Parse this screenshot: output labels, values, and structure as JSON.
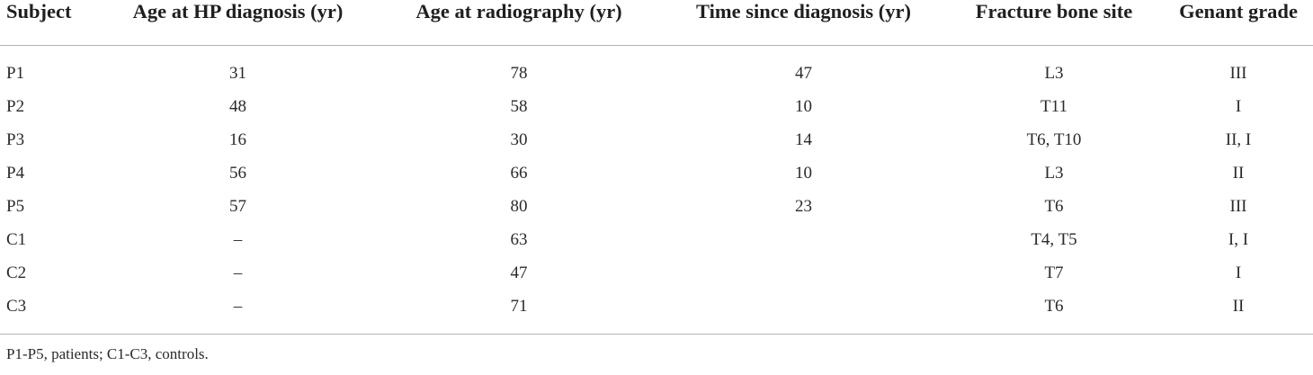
{
  "table": {
    "columns": [
      "Subject",
      "Age at HP diagnosis (yr)",
      "Age at radiography (yr)",
      "Time since diagnosis (yr)",
      "Fracture bone site",
      "Genant grade"
    ],
    "rows": [
      [
        "P1",
        "31",
        "78",
        "47",
        "L3",
        "III"
      ],
      [
        "P2",
        "48",
        "58",
        "10",
        "T11",
        "I"
      ],
      [
        "P3",
        "16",
        "30",
        "14",
        "T6, T10",
        "II, I"
      ],
      [
        "P4",
        "56",
        "66",
        "10",
        "L3",
        "II"
      ],
      [
        "P5",
        "57",
        "80",
        "23",
        "T6",
        "III"
      ],
      [
        "C1",
        "–",
        "63",
        "",
        "T4, T5",
        "I, I"
      ],
      [
        "C2",
        "–",
        "47",
        "",
        "T7",
        "I"
      ],
      [
        "C3",
        "–",
        "71",
        "",
        "T6",
        "II"
      ]
    ]
  },
  "footnote": "P1-P5, patients; C1-C3, controls."
}
